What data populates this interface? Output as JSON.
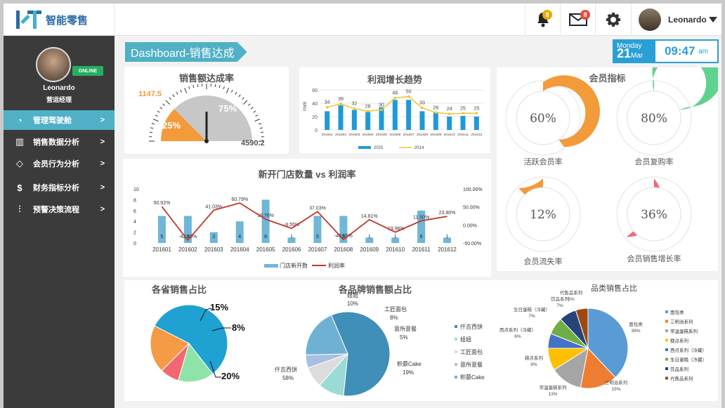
{
  "app": {
    "name": "智能零售"
  },
  "topbar": {
    "bell_count": "8",
    "mail_count": "8",
    "user_name": "Leonardo"
  },
  "sidebar": {
    "user_name": "Leonardo",
    "user_role": "营运经理",
    "status": "ONLINE",
    "items": [
      {
        "label": "管理驾驶舱",
        "icon": "gauge-icon",
        "arrow": ">"
      },
      {
        "label": "销售数据分析",
        "icon": "bar-chart-icon",
        "arrow": ">"
      },
      {
        "label": "会员行为分析",
        "icon": "diamond-icon",
        "arrow": ">"
      },
      {
        "label": "财务指标分析",
        "icon": "money-bag-icon",
        "arrow": ">"
      },
      {
        "label": "预警决策流程",
        "icon": "sliders-icon",
        "arrow": ">"
      }
    ]
  },
  "header": {
    "title": "Dashboard-销售达成",
    "weekday": "Monday",
    "day": "21",
    "month": "Mar",
    "time": "09:47",
    "ampm": "am"
  },
  "chart_data": [
    {
      "type": "gauge",
      "title": "销售额达成率",
      "actual": "1147.5",
      "target": "4590.2",
      "achieved_pct": "25%",
      "remaining_pct": "75%",
      "achieved_fraction": 0.25
    },
    {
      "type": "bar",
      "title": "利润增长趋势",
      "ylabel": "RMB",
      "ylim": [
        0,
        60
      ],
      "yticks": [
        "0",
        "20",
        "40",
        "60"
      ],
      "categories": [
        "201501",
        "201502",
        "201503",
        "201504",
        "201505",
        "201506",
        "201507",
        "201508",
        "201509",
        "201510",
        "201511",
        "201512"
      ],
      "series": [
        {
          "name": "2015",
          "values": [
            28,
            37,
            30,
            27,
            34,
            45,
            45,
            28,
            26,
            20,
            21,
            20
          ]
        },
        {
          "name": "2014",
          "values": [
            34,
            39,
            32,
            28,
            30,
            48,
            50,
            33,
            26,
            24,
            25,
            25
          ]
        }
      ]
    },
    {
      "type": "bar",
      "title": "新开门店数量 vs 利润率",
      "categories": [
        "201601",
        "201602",
        "201603",
        "201604",
        "201605",
        "201606",
        "201607",
        "201608",
        "201609",
        "201610",
        "201611",
        "201612"
      ],
      "yticks_left": [
        "0",
        "2",
        "4",
        "6",
        "8",
        "10"
      ],
      "yticks_right": [
        "-50.00%",
        "0.00%",
        "50.00%",
        "100.00%"
      ],
      "series": [
        {
          "name": "门店新开数",
          "values": [
            5,
            5,
            2,
            4,
            8,
            1,
            5,
            5,
            1,
            1,
            6,
            1
          ]
        },
        {
          "name": "利润率",
          "values": [
            50.92,
            -42.45,
            41.03,
            60.79,
            15.76,
            -9.55,
            37.03,
            -40.55,
            14.61,
            -19.96,
            11.5,
            23.8
          ],
          "labels": [
            "50.92%",
            "-42.45%",
            "41.03%",
            "60.79%",
            "15.76%",
            "-9.55%",
            "37.03%",
            "-40.55%",
            "14.61%",
            "-19.96%",
            "11.50%",
            "23.80%"
          ]
        }
      ]
    },
    {
      "type": "donut",
      "title": "会员指标",
      "items": [
        {
          "label": "活跃会员率",
          "value": 60,
          "text": "60%",
          "color": "#f39a3b"
        },
        {
          "label": "会员复购率",
          "value": 80,
          "text": "80%",
          "color": "#5fd38d"
        },
        {
          "label": "会员流失率",
          "value": 12,
          "text": "12%",
          "color": "#f39a3b"
        },
        {
          "label": "会员销售增长率",
          "value": 36,
          "text": "36%",
          "color": "#f16874"
        }
      ]
    },
    {
      "type": "pie",
      "title": "各省销售占比",
      "slices": [
        {
          "value": 57,
          "color": "#1fa1d1"
        },
        {
          "value": 15,
          "text": "15%",
          "color": "#8ee4a8"
        },
        {
          "value": 8,
          "text": "8%",
          "color": "#f16874"
        },
        {
          "value": 20,
          "text": "20%",
          "color": "#f59a45"
        }
      ]
    },
    {
      "type": "pie",
      "title": "各品牌销售额占比",
      "slices": [
        {
          "name": "仟吉西饼",
          "value": 58,
          "text": "58%",
          "color": "#3f8fb8"
        },
        {
          "name": "妞妞",
          "value": 10,
          "text": "10%",
          "color": "#9adcd5"
        },
        {
          "name": "工匠面包",
          "value": 8,
          "text": "8%",
          "color": "#dcdcdc"
        },
        {
          "name": "意所意餐",
          "value": 5,
          "text": "5%",
          "color": "#a7bfe0"
        },
        {
          "name": "积慕Cake",
          "value": 19,
          "text": "19%",
          "color": "#6fb1d3"
        }
      ]
    },
    {
      "type": "pie",
      "title": "品类销售占比",
      "slices": [
        {
          "name": "面包类",
          "value": 38,
          "text": "38%",
          "color": "#5b9bd5"
        },
        {
          "name": "三明治系列",
          "value": 15,
          "text": "15%",
          "color": "#ed7d31"
        },
        {
          "name": "常温蛋糕系列",
          "value": 13,
          "text": "13%",
          "color": "#a5a5a5"
        },
        {
          "name": "糕点系列",
          "value": 9,
          "text": "9%",
          "color": "#ffc000"
        },
        {
          "name": "西点系列（冷藏）",
          "value": 6,
          "text": "6%",
          "color": "#4472c4"
        },
        {
          "name": "生日蛋糕（冷藏）",
          "value": 7,
          "text": "7%",
          "color": "#70ad47"
        },
        {
          "name": "饮品系列",
          "value": 7,
          "text": "7%",
          "color": "#264478"
        },
        {
          "name": "代售品系列",
          "value": 5,
          "text": "5%",
          "color": "#9e480e"
        }
      ]
    }
  ]
}
